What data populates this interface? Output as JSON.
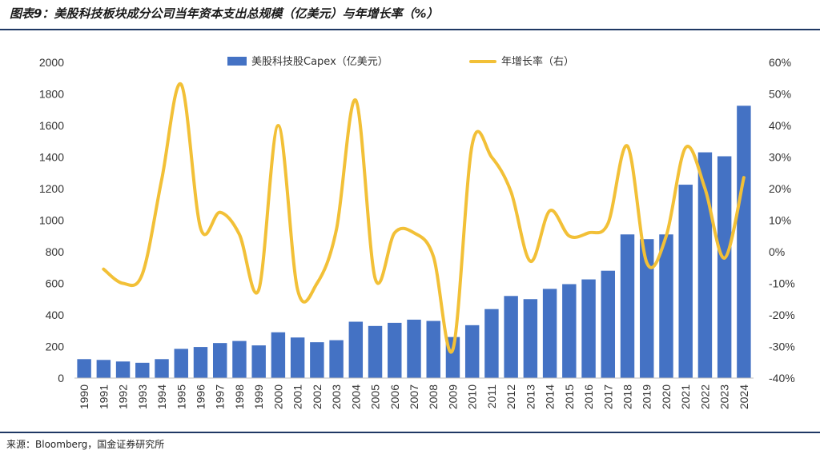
{
  "title": "图表9：美股科技板块成分公司当年资本支出总规模（亿美元）与年增长率（%）",
  "source": "来源：Bloomberg，国金证券研究所",
  "colors": {
    "bar": "#4472c4",
    "line": "#f2c037",
    "rule": "#1f3864"
  },
  "chart_data": {
    "type": "bar+line",
    "categories": [
      "1990",
      "1991",
      "1992",
      "1993",
      "1994",
      "1995",
      "1996",
      "1997",
      "1998",
      "1999",
      "2000",
      "2001",
      "2002",
      "2003",
      "2004",
      "2005",
      "2006",
      "2007",
      "2008",
      "2009",
      "2010",
      "2011",
      "2012",
      "2013",
      "2014",
      "2015",
      "2016",
      "2017",
      "2018",
      "2019",
      "2020",
      "2021",
      "2022",
      "2023",
      "2024"
    ],
    "series": [
      {
        "name": "美股科技股Capex（亿美元）",
        "type": "bar",
        "axis": "left",
        "values": [
          120,
          115,
          105,
          97,
          120,
          185,
          197,
          222,
          235,
          207,
          290,
          257,
          227,
          240,
          357,
          330,
          350,
          370,
          362,
          260,
          335,
          437,
          520,
          500,
          565,
          595,
          625,
          680,
          910,
          880,
          910,
          1225,
          1430,
          1405,
          1725
        ]
      },
      {
        "name": "年增长率（右）",
        "type": "line",
        "axis": "right",
        "values": [
          null,
          -5.5,
          -10,
          -7,
          23,
          53,
          7.5,
          12.5,
          5.5,
          -12,
          40,
          -12,
          -10,
          7,
          48,
          -8.5,
          6,
          6,
          -1.5,
          -31,
          34,
          30,
          19,
          -3,
          13,
          5,
          6,
          9,
          33.5,
          -3.5,
          5,
          33,
          20,
          -2,
          23.5
        ]
      }
    ],
    "y_left": {
      "min": 0,
      "max": 2000,
      "step": 200,
      "ticks": [
        "0",
        "200",
        "400",
        "600",
        "800",
        "1000",
        "1200",
        "1400",
        "1600",
        "1800",
        "2000"
      ]
    },
    "y_right": {
      "min": -40,
      "max": 60,
      "step": 10,
      "ticks": [
        "-40%",
        "-30%",
        "-20%",
        "-10%",
        "0%",
        "10%",
        "20%",
        "30%",
        "40%",
        "50%",
        "60%"
      ]
    },
    "legend": {
      "position": "top-center",
      "items": [
        "美股科技股Capex（亿美元）",
        "年增长率（右）"
      ]
    },
    "grid": false
  }
}
